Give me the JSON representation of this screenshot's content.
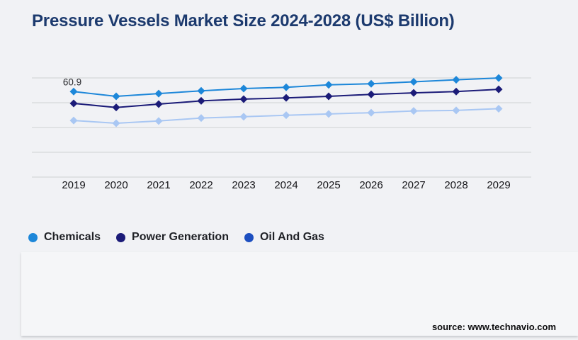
{
  "title": "Pressure Vessels Market Size 2024-2028 (US$ Billion)",
  "source": "source: www.technavio.com",
  "colors": {
    "background": "#f1f2f5",
    "panel": "#f5f6f8",
    "title_text": "#1c3a6e",
    "gridline": "#d7d8da",
    "axis_label": "#141418",
    "data_label": "#2a2b2f",
    "chemicals": "#1d87d9",
    "power_generation": "#1b1b78",
    "oil_and_gas_line": "#a9c7f3",
    "oil_and_gas_legend": "#1d4fc0"
  },
  "legend": [
    {
      "label": "Chemicals",
      "color": "#1d87d9"
    },
    {
      "label": "Power Generation",
      "color": "#1b1b78"
    },
    {
      "label": "Oil And Gas",
      "color": "#1d4fc0"
    }
  ],
  "chart_data": {
    "type": "line",
    "title": "Pressure Vessels Market Size 2024-2028 (US$ Billion)",
    "xlabel": "",
    "ylabel": "",
    "x": [
      2019,
      2020,
      2021,
      2022,
      2023,
      2024,
      2025,
      2026,
      2027,
      2028,
      2029
    ],
    "series": [
      {
        "name": "Chemicals",
        "color": "#1d87d9",
        "values": [
          60.9,
          59.0,
          60.1,
          61.2,
          62.1,
          62.6,
          63.6,
          64.0,
          64.8,
          65.6,
          66.3
        ]
      },
      {
        "name": "Power Generation",
        "color": "#1b1b78",
        "values": [
          56.2,
          54.6,
          55.9,
          57.2,
          57.9,
          58.4,
          59.0,
          59.8,
          60.4,
          60.9,
          61.8
        ]
      },
      {
        "name": "Oil And Gas",
        "color": "#a9c7f3",
        "values": [
          49.4,
          48.3,
          49.2,
          50.4,
          50.9,
          51.5,
          52.0,
          52.5,
          53.2,
          53.4,
          54.1
        ]
      }
    ],
    "annotations": [
      {
        "series": "Chemicals",
        "x": 2019,
        "text": "60.9"
      }
    ],
    "marker": "diamond",
    "grid": "horizontal",
    "gridline_count": 5,
    "y_axis_hidden": true,
    "ylim_estimated": [
      45,
      70
    ],
    "legend_position": "bottom-left"
  }
}
